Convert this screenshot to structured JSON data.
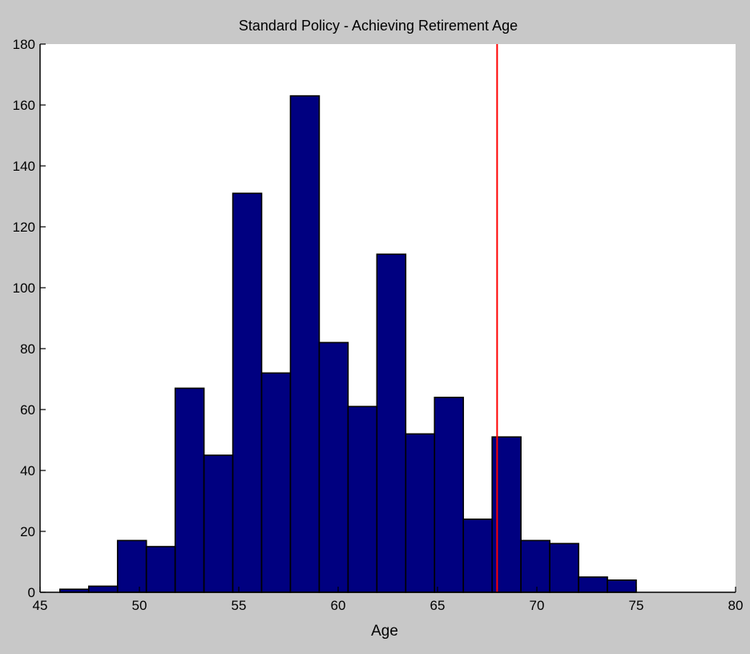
{
  "chart_data": {
    "type": "bar",
    "title": "Standard Policy - Achieving Retirement Age",
    "xlabel": "Age",
    "ylabel": "",
    "xlim": [
      45,
      80
    ],
    "ylim": [
      0,
      180
    ],
    "xticks": [
      45,
      50,
      55,
      60,
      65,
      70,
      75,
      80
    ],
    "yticks": [
      0,
      20,
      40,
      60,
      80,
      100,
      120,
      140,
      160,
      180
    ],
    "bin_edges": [
      46.0,
      47.45,
      48.9,
      50.35,
      51.8,
      53.25,
      54.7,
      56.15,
      57.6,
      59.05,
      60.5,
      61.95,
      63.4,
      64.85,
      66.3,
      67.75,
      69.2,
      70.65,
      72.1,
      73.55,
      75.0
    ],
    "values": [
      1,
      2,
      17,
      15,
      67,
      45,
      131,
      72,
      163,
      82,
      61,
      111,
      52,
      64,
      24,
      51,
      17,
      16,
      5,
      4
    ],
    "bar_color": "#000080",
    "reference_line": {
      "x": 68,
      "color": "#ff0000"
    },
    "grid": false,
    "legend": "none"
  }
}
